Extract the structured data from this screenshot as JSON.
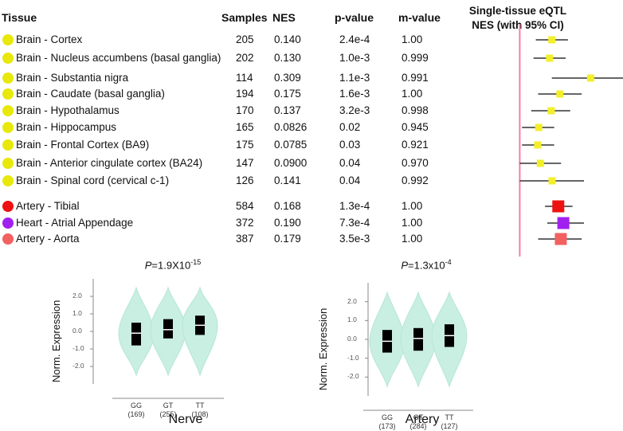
{
  "table": {
    "headers": {
      "tissue": "Tissue",
      "samples": "Samples",
      "nes": "NES",
      "pvalue": "p-value",
      "mvalue": "m-value"
    },
    "forest_title_line1": "Single-tissue eQTL",
    "forest_title_line2": "NES (with 95% CI)",
    "rows": [
      {
        "tissue": "Brain - Cortex",
        "samples": "205",
        "nes": "0.140",
        "p": "2.4e-4",
        "m": "1.00",
        "color": "#e8e80a"
      },
      {
        "tissue": "Brain - Nucleus accumbens (basal ganglia)",
        "samples": "202",
        "nes": "0.130",
        "p": "1.0e-3",
        "m": "0.999",
        "color": "#e8e80a"
      },
      {
        "tissue": "Brain - Substantia nigra",
        "samples": "114",
        "nes": "0.309",
        "p": "1.1e-3",
        "m": "0.991",
        "color": "#e8e80a"
      },
      {
        "tissue": "Brain - Caudate (basal ganglia)",
        "samples": "194",
        "nes": "0.175",
        "p": "1.6e-3",
        "m": "1.00",
        "color": "#e8e80a"
      },
      {
        "tissue": "Brain - Hypothalamus",
        "samples": "170",
        "nes": "0.137",
        "p": "3.2e-3",
        "m": "0.998",
        "color": "#e8e80a"
      },
      {
        "tissue": "Brain - Hippocampus",
        "samples": "165",
        "nes": "0.0826",
        "p": "0.02",
        "m": "0.945",
        "color": "#e8e80a"
      },
      {
        "tissue": "Brain - Frontal Cortex (BA9)",
        "samples": "175",
        "nes": "0.0785",
        "p": "0.03",
        "m": "0.921",
        "color": "#e8e80a"
      },
      {
        "tissue": "Brain - Anterior cingulate cortex (BA24)",
        "samples": "147",
        "nes": "0.0900",
        "p": "0.04",
        "m": "0.970",
        "color": "#e8e80a"
      },
      {
        "tissue": "Brain - Spinal cord (cervical c-1)",
        "samples": "126",
        "nes": "0.141",
        "p": "0.04",
        "m": "0.992",
        "color": "#e8e80a"
      },
      {
        "tissue": "Artery - Tibial",
        "samples": "584",
        "nes": "0.168",
        "p": "1.3e-4",
        "m": "1.00",
        "color": "#ee1111"
      },
      {
        "tissue": "Heart - Atrial Appendage",
        "samples": "372",
        "nes": "0.190",
        "p": "7.3e-4",
        "m": "1.00",
        "color": "#a020f0"
      },
      {
        "tissue": "Artery - Aorta",
        "samples": "387",
        "nes": "0.179",
        "p": "3.5e-3",
        "m": "1.00",
        "color": "#f26060"
      }
    ]
  },
  "chart_data": [
    {
      "type": "forest",
      "title": "Single-tissue eQTL NES (with 95% CI)",
      "zero_line": 0,
      "xlim": [
        -0.05,
        0.45
      ],
      "points": [
        {
          "label": "Brain - Cortex",
          "nes": 0.14,
          "ci": [
            0.07,
            0.21
          ],
          "color": "#f2ef2a",
          "size": "small"
        },
        {
          "label": "Brain - Nucleus accumbens (basal ganglia)",
          "nes": 0.13,
          "ci": [
            0.06,
            0.2
          ],
          "color": "#f2ef2a",
          "size": "small"
        },
        {
          "label": "Brain - Substantia nigra",
          "nes": 0.309,
          "ci": [
            0.14,
            0.47
          ],
          "color": "#f2ef2a",
          "size": "small"
        },
        {
          "label": "Brain - Caudate (basal ganglia)",
          "nes": 0.175,
          "ci": [
            0.08,
            0.27
          ],
          "color": "#f2ef2a",
          "size": "small"
        },
        {
          "label": "Brain - Hypothalamus",
          "nes": 0.137,
          "ci": [
            0.05,
            0.22
          ],
          "color": "#f2ef2a",
          "size": "small"
        },
        {
          "label": "Brain - Hippocampus",
          "nes": 0.0826,
          "ci": [
            0.01,
            0.15
          ],
          "color": "#f2ef2a",
          "size": "small"
        },
        {
          "label": "Brain - Frontal Cortex (BA9)",
          "nes": 0.0785,
          "ci": [
            0.01,
            0.15
          ],
          "color": "#f2ef2a",
          "size": "small"
        },
        {
          "label": "Brain - Anterior cingulate cortex (BA24)",
          "nes": 0.09,
          "ci": [
            0.0,
            0.18
          ],
          "color": "#f2ef2a",
          "size": "small"
        },
        {
          "label": "Brain - Spinal cord (cervical c-1)",
          "nes": 0.141,
          "ci": [
            0.0,
            0.28
          ],
          "color": "#f2ef2a",
          "size": "small"
        },
        {
          "label": "Artery - Tibial",
          "nes": 0.168,
          "ci": [
            0.11,
            0.23
          ],
          "color": "#ee1111",
          "size": "large"
        },
        {
          "label": "Heart - Atrial Appendage",
          "nes": 0.19,
          "ci": [
            0.12,
            0.28
          ],
          "color": "#a020f0",
          "size": "large"
        },
        {
          "label": "Artery - Aorta",
          "nes": 0.179,
          "ci": [
            0.08,
            0.27
          ],
          "color": "#f26060",
          "size": "large"
        }
      ]
    },
    {
      "type": "violin",
      "tissue": "Nerve",
      "p_prefix": "P",
      "p_text": "=1.9X10",
      "p_exp": "-15",
      "ylabel": "Norm. Expression",
      "yticks": [
        "2.0",
        "1.0",
        "0.0",
        "-1.0",
        "-2.0"
      ],
      "ylim": [
        -3,
        3
      ],
      "genotypes": [
        {
          "label": "GG",
          "n": "(169)",
          "median": -0.1,
          "q1": -0.8,
          "q3": 0.5
        },
        {
          "label": "GT",
          "n": "(255)",
          "median": 0.1,
          "q1": -0.4,
          "q3": 0.7
        },
        {
          "label": "TT",
          "n": "(108)",
          "median": 0.35,
          "q1": -0.2,
          "q3": 0.9
        }
      ]
    },
    {
      "type": "violin",
      "tissue": "Artery",
      "p_prefix": "P",
      "p_text": "=1.3x10",
      "p_exp": "-4",
      "ylabel": "Norm. Expression",
      "yticks": [
        "2.0",
        "1.0",
        "0.0",
        "-1.0",
        "-2.0"
      ],
      "ylim": [
        -3,
        3
      ],
      "genotypes": [
        {
          "label": "GG",
          "n": "(173)",
          "median": -0.1,
          "q1": -0.7,
          "q3": 0.5
        },
        {
          "label": "GT",
          "n": "(284)",
          "median": 0.05,
          "q1": -0.6,
          "q3": 0.6
        },
        {
          "label": "TT",
          "n": "(127)",
          "median": 0.2,
          "q1": -0.4,
          "q3": 0.8
        }
      ]
    }
  ]
}
